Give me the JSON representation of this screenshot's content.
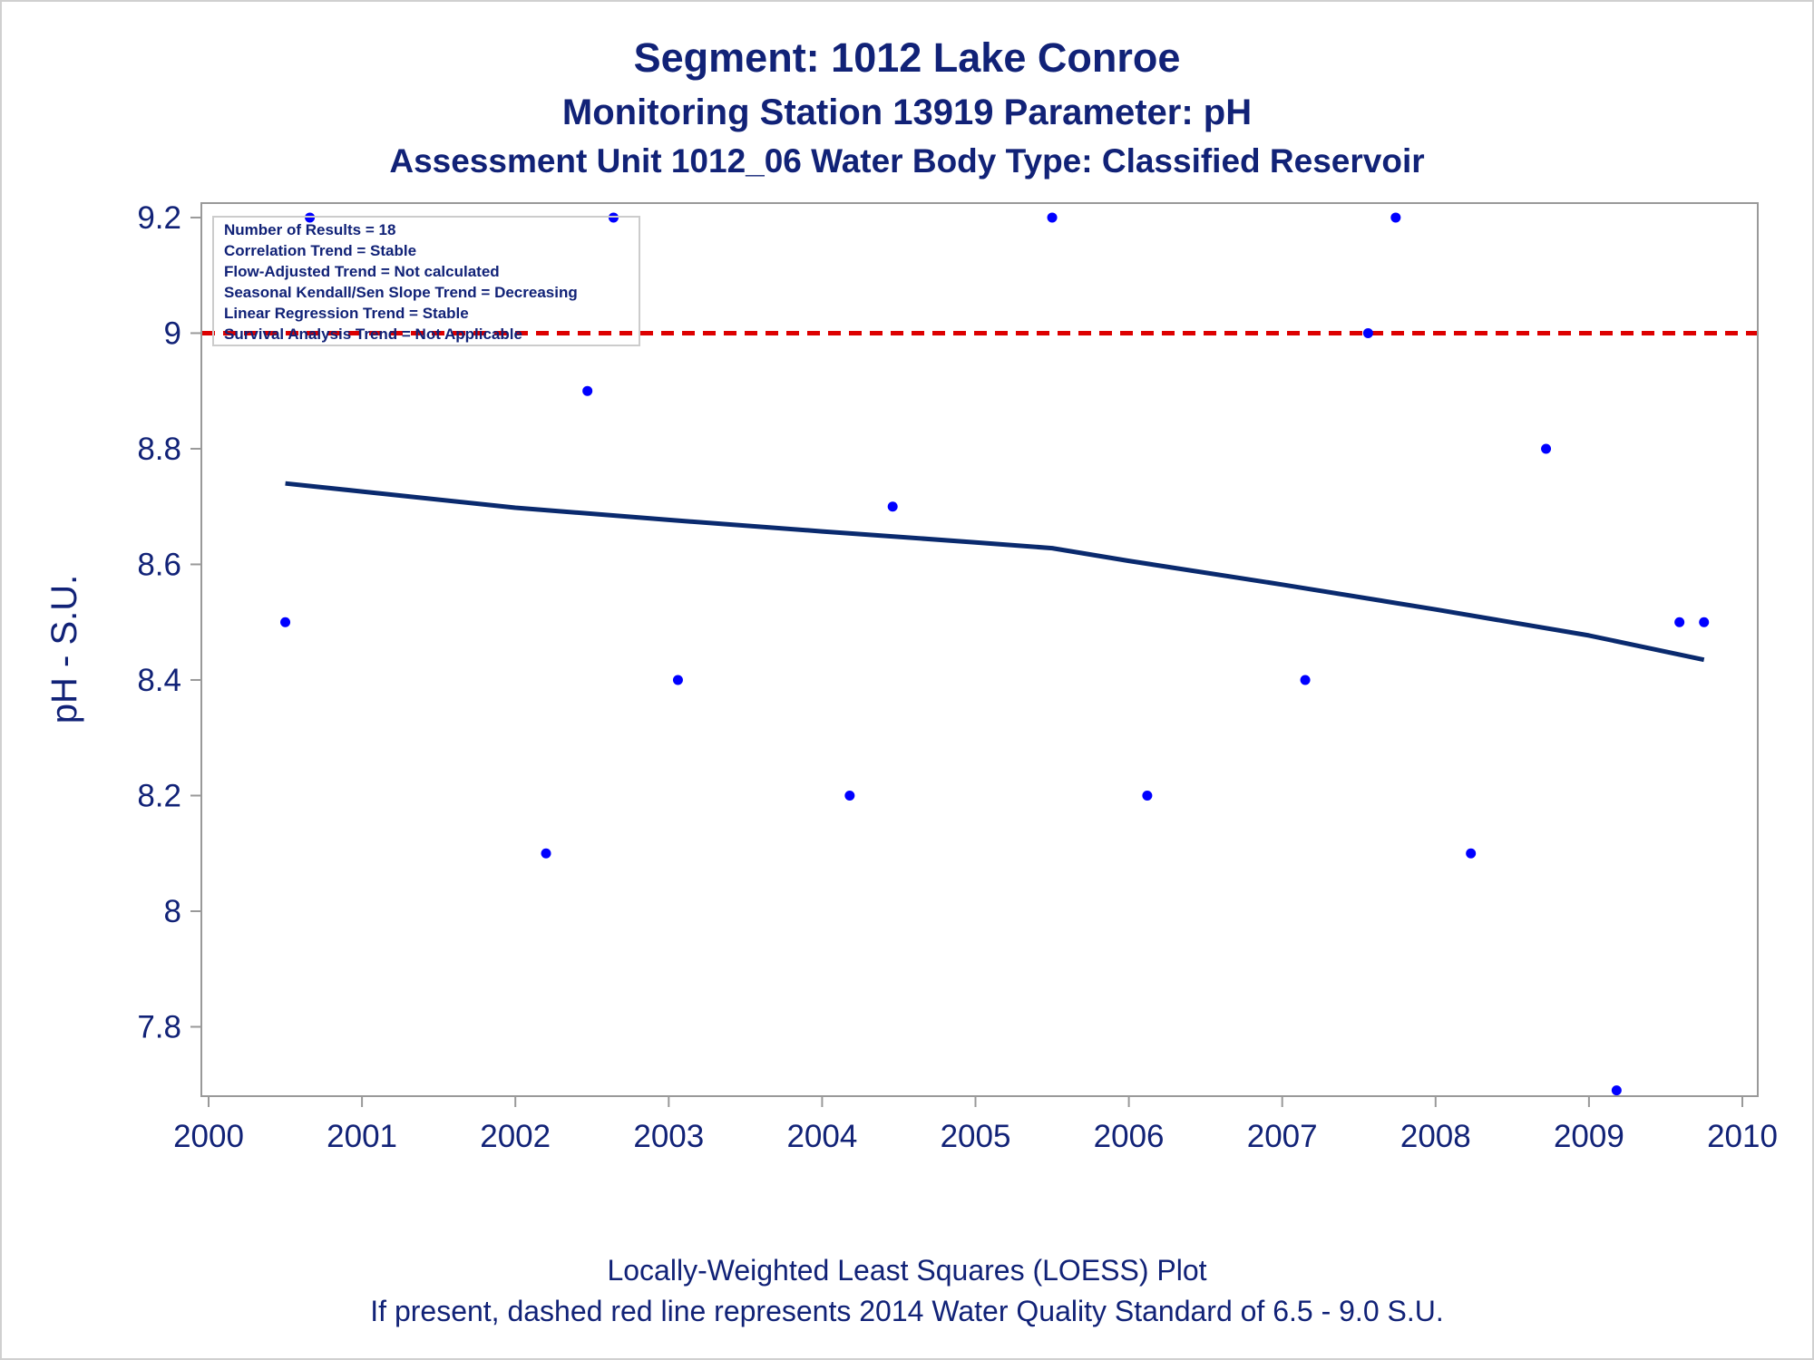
{
  "titles": {
    "line1": "Segment: 1012  Lake Conroe",
    "line2": "Monitoring Station 13919 Parameter: pH",
    "line3": "Assessment Unit 1012_06   Water Body Type: Classified Reservoir"
  },
  "footnotes": {
    "line1": "Locally-Weighted Least Squares (LOESS) Plot",
    "line2": "If present, dashed red line represents 2014 Water Quality Standard of 6.5 - 9.0 S.U."
  },
  "stats_box": [
    "Number of Results = 18",
    "Correlation Trend = Stable",
    "Flow-Adjusted Trend = Not calculated",
    "Seasonal Kendall/Sen Slope Trend = Decreasing",
    "Linear Regression Trend = Stable",
    "Survival Analysis Trend = Not Applicable"
  ],
  "colors": {
    "text": "#112277",
    "points": "#0000ff",
    "loess": "#0a2a6e",
    "standard_line": "#dd0000",
    "axis": "#999999"
  },
  "chart_data": {
    "type": "scatter",
    "title": "Segment: 1012  Lake Conroe",
    "xlabel": "",
    "ylabel": "pH - S.U.",
    "xlim": [
      2000,
      2010
    ],
    "ylim": [
      7.68,
      9.225
    ],
    "x_ticks": [
      2000,
      2001,
      2002,
      2003,
      2004,
      2005,
      2006,
      2007,
      2008,
      2009,
      2010
    ],
    "y_ticks": [
      7.8,
      8,
      8.2,
      8.4,
      8.6,
      8.8,
      9,
      9.2
    ],
    "y_tick_labels": [
      "7.8",
      "8",
      "8.2",
      "8.4",
      "8.6",
      "8.8",
      "9",
      "9.2"
    ],
    "grid": false,
    "series": [
      {
        "type": "scatter",
        "points": [
          {
            "x": 2000.5,
            "y": 8.5
          },
          {
            "x": 2000.66,
            "y": 9.2
          },
          {
            "x": 2002.2,
            "y": 8.1
          },
          {
            "x": 2002.47,
            "y": 8.9
          },
          {
            "x": 2002.64,
            "y": 9.2
          },
          {
            "x": 2003.06,
            "y": 8.4
          },
          {
            "x": 2004.18,
            "y": 8.2
          },
          {
            "x": 2004.46,
            "y": 8.7
          },
          {
            "x": 2005.5,
            "y": 9.2
          },
          {
            "x": 2006.12,
            "y": 8.2
          },
          {
            "x": 2007.15,
            "y": 8.4
          },
          {
            "x": 2007.56,
            "y": 9.0
          },
          {
            "x": 2007.74,
            "y": 9.2
          },
          {
            "x": 2008.23,
            "y": 8.1
          },
          {
            "x": 2008.72,
            "y": 8.8
          },
          {
            "x": 2009.18,
            "y": 7.69
          },
          {
            "x": 2009.59,
            "y": 8.5
          },
          {
            "x": 2009.75,
            "y": 8.5
          }
        ]
      },
      {
        "type": "line",
        "points": [
          {
            "x": 2000.5,
            "y": 8.74
          },
          {
            "x": 2001.0,
            "y": 8.726
          },
          {
            "x": 2002.0,
            "y": 8.698
          },
          {
            "x": 2003.0,
            "y": 8.677
          },
          {
            "x": 2004.0,
            "y": 8.657
          },
          {
            "x": 2005.0,
            "y": 8.638
          },
          {
            "x": 2005.5,
            "y": 8.628
          },
          {
            "x": 2006.0,
            "y": 8.606
          },
          {
            "x": 2007.0,
            "y": 8.565
          },
          {
            "x": 2008.0,
            "y": 8.522
          },
          {
            "x": 2009.0,
            "y": 8.477
          },
          {
            "x": 2009.75,
            "y": 8.435
          }
        ]
      }
    ],
    "reference_lines": [
      {
        "axis": "y",
        "value": 9.0,
        "style": "dashed",
        "color": "#dd0000"
      }
    ]
  }
}
